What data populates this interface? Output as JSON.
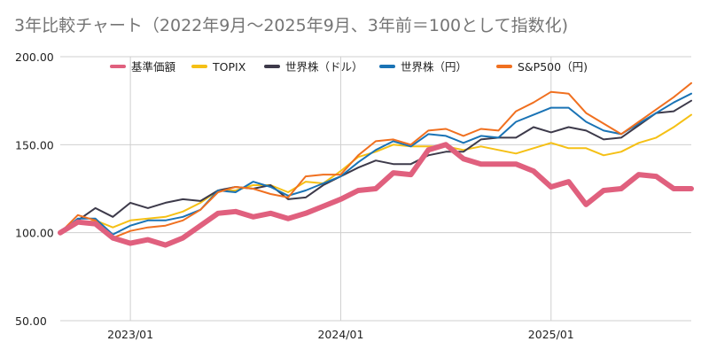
{
  "chart_data": {
    "type": "line",
    "title": "3年比較チャート（2022年9月〜2025年9月、3年前＝100として指数化)",
    "xlabel": "",
    "ylabel": "",
    "ylim": [
      50,
      200
    ],
    "y_ticks": [
      "50.00",
      "100.00",
      "150.00",
      "200.00"
    ],
    "x_ticks": [
      "2023/01",
      "2024/01",
      "2025/01"
    ],
    "grid": true,
    "legend_position": "top",
    "x": [
      "2022/09",
      "2022/10",
      "2022/11",
      "2022/12",
      "2023/01",
      "2023/02",
      "2023/03",
      "2023/04",
      "2023/05",
      "2023/06",
      "2023/07",
      "2023/08",
      "2023/09",
      "2023/10",
      "2023/11",
      "2023/12",
      "2024/01",
      "2024/02",
      "2024/03",
      "2024/04",
      "2024/05",
      "2024/06",
      "2024/07",
      "2024/08",
      "2024/09",
      "2024/10",
      "2024/11",
      "2024/12",
      "2025/01",
      "2025/02",
      "2025/03",
      "2025/04",
      "2025/05",
      "2025/06",
      "2025/07",
      "2025/08",
      "2025/09"
    ],
    "series": [
      {
        "name": "基準価額",
        "color": "#e0607e",
        "width": 6,
        "values": [
          100,
          106,
          105,
          97,
          94,
          96,
          93,
          97,
          104,
          111,
          112,
          109,
          111,
          108,
          111,
          115,
          119,
          124,
          125,
          134,
          133,
          147,
          150,
          142,
          139,
          139,
          139,
          135,
          126,
          129,
          116,
          124,
          125,
          133,
          132,
          125,
          125
        ]
      },
      {
        "name": "TOPIX",
        "color": "#f5c015",
        "width": 2,
        "values": [
          100,
          105,
          107,
          103,
          107,
          108,
          109,
          112,
          117,
          124,
          124,
          127,
          127,
          123,
          129,
          128,
          135,
          143,
          146,
          150,
          149,
          149,
          149,
          147,
          149,
          147,
          145,
          148,
          151,
          148,
          148,
          144,
          146,
          151,
          154,
          160,
          167
        ]
      },
      {
        "name": "世界株（ドル）",
        "color": "#3d3a4a",
        "width": 2,
        "values": [
          100,
          107,
          114,
          109,
          117,
          114,
          117,
          119,
          118,
          124,
          126,
          125,
          127,
          119,
          120,
          127,
          132,
          137,
          141,
          139,
          139,
          144,
          146,
          146,
          153,
          154,
          154,
          160,
          157,
          160,
          158,
          153,
          154,
          161,
          168,
          169,
          175
        ]
      },
      {
        "name": "世界株（円）",
        "color": "#1a73b5",
        "width": 2,
        "values": [
          100,
          108,
          108,
          99,
          104,
          107,
          107,
          109,
          113,
          124,
          123,
          129,
          126,
          121,
          124,
          128,
          132,
          140,
          147,
          152,
          149,
          156,
          155,
          151,
          155,
          154,
          163,
          167,
          171,
          171,
          163,
          158,
          156,
          162,
          168,
          174,
          179
        ]
      },
      {
        "name": "S&P500（円)",
        "color": "#f07020",
        "width": 2,
        "values": [
          100,
          110,
          107,
          97,
          101,
          103,
          104,
          107,
          113,
          123,
          126,
          125,
          122,
          120,
          132,
          133,
          133,
          144,
          152,
          153,
          150,
          158,
          159,
          155,
          159,
          158,
          169,
          174,
          180,
          179,
          168,
          162,
          156,
          163,
          170,
          177,
          185
        ]
      }
    ]
  }
}
